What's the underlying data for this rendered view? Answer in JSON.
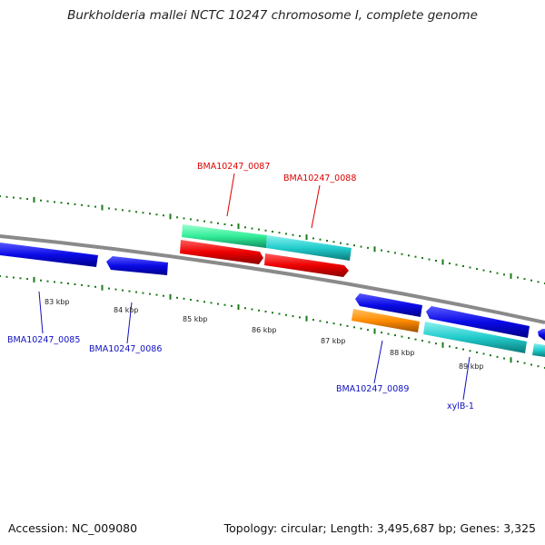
{
  "title": "Burkholderia mallei NCTC 10247 chromosome I, complete genome",
  "footer": {
    "accession": "Accession: NC_009080",
    "stats": "Topology: circular; Length: 3,495,687 bp; Genes: 3,325"
  },
  "colors": {
    "backbone": "#8a8a8a",
    "tick": "#1a7a1a",
    "label_red": "#dd0000",
    "label_blue": "#1010c0",
    "gene_blue": "#0a0ae6",
    "gene_red": "#ee0000",
    "gene_cyan": "#22cccc",
    "gene_green": "#33ee99",
    "gene_orange": "#ff8c00"
  },
  "scale_labels": [
    "83 kbp",
    "84 kbp",
    "85 kbp",
    "86 kbp",
    "87 kbp",
    "88 kbp",
    "89 kbp"
  ],
  "gene_labels": [
    {
      "text": "BMA10247_0087",
      "color": "red"
    },
    {
      "text": "BMA10247_0088",
      "color": "red"
    },
    {
      "text": "BMA10247_0085",
      "color": "blue"
    },
    {
      "text": "BMA10247_0086",
      "color": "blue"
    },
    {
      "text": "BMA10247_0089",
      "color": "blue"
    },
    {
      "text": "xylB-1",
      "color": "blue"
    }
  ]
}
